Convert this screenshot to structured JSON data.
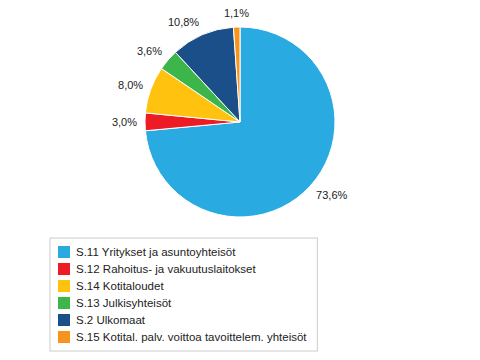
{
  "chart_data": {
    "type": "pie",
    "categories": [
      "S.11 Yritykset ja asuntoyhteisöt",
      "S.12 Rahoitus- ja vakuutuslaitokset",
      "S.14 Kotitaloudet",
      "S.13 Julkisyhteisöt",
      "S.2 Ulkomaat",
      "S.15 Kotital. palv. voittoa tavoittelem. yhteisöt"
    ],
    "values": [
      73.6,
      3.0,
      8.0,
      3.6,
      10.8,
      1.1
    ],
    "value_labels": [
      "73,6%",
      "3,0%",
      "8,0%",
      "3,6%",
      "10,8%",
      "1,1%"
    ],
    "colors": [
      "#29ABE2",
      "#ED1C24",
      "#FFC20E",
      "#3CB54A",
      "#1B4F8A",
      "#F7941D"
    ],
    "data_labels": true,
    "legend": "bottom"
  }
}
